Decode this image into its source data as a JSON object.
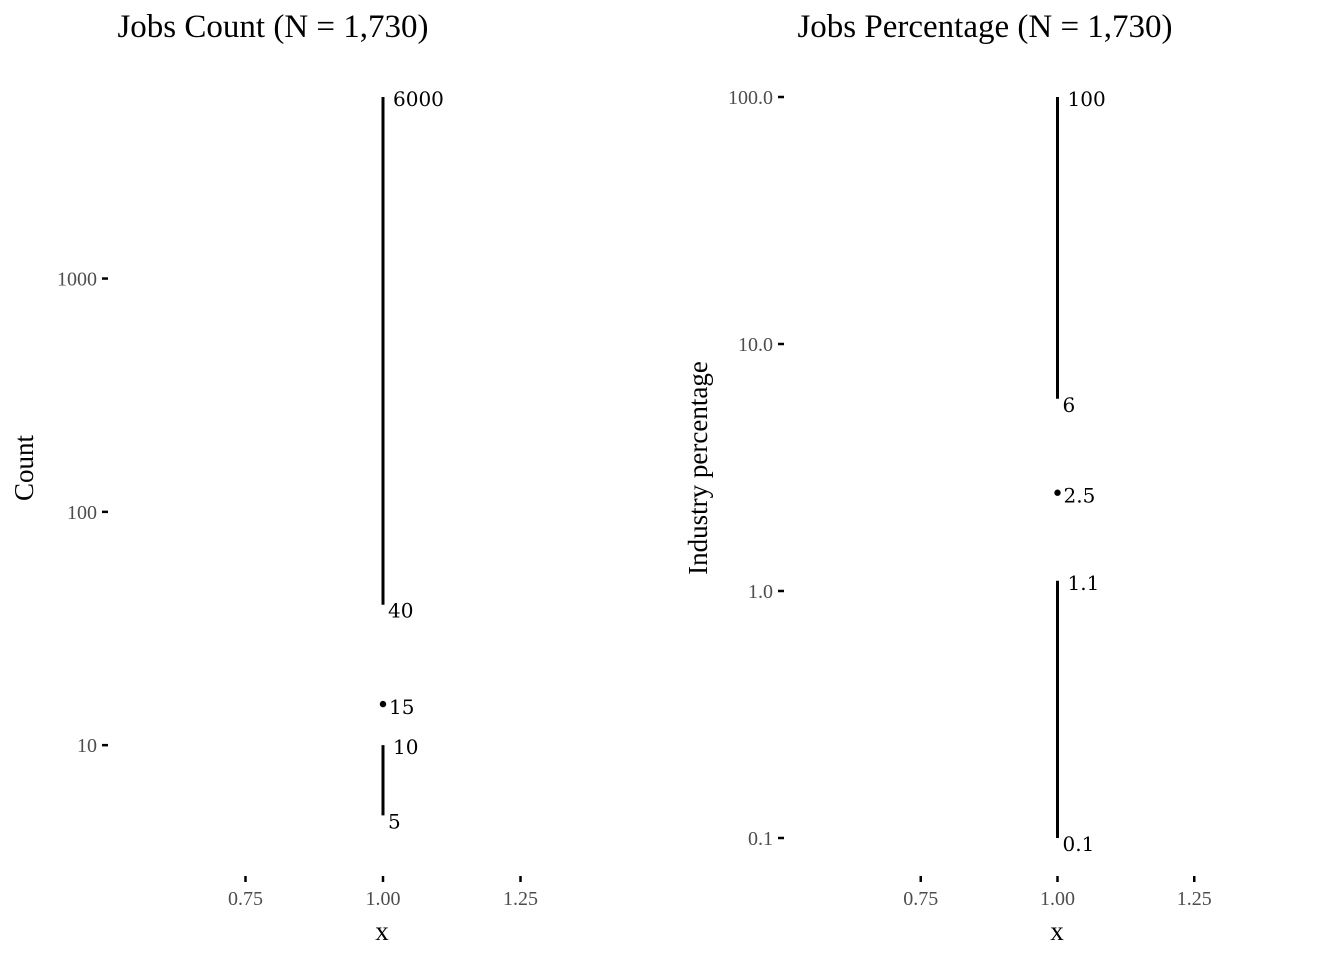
{
  "chart_data": [
    {
      "type": "range",
      "title": "Jobs Count (N = 1,730)",
      "xlabel": "x",
      "ylabel": "Count",
      "y_scale": "log10",
      "ylim": [
        4,
        6000
      ],
      "xlim": [
        0.5,
        1.5
      ],
      "x_ticks": [
        "0.75",
        "1.00",
        "1.25"
      ],
      "y_ticks": [
        {
          "value": 10,
          "label": "10"
        },
        {
          "value": 100,
          "label": "100"
        },
        {
          "value": 1000,
          "label": "1000"
        }
      ],
      "segments": [
        {
          "x": 1,
          "low": 40,
          "high": 6000,
          "low_label": "40",
          "high_label": "6000"
        },
        {
          "x": 1,
          "low": 5,
          "high": 10,
          "low_label": "5",
          "high_label": "10"
        }
      ],
      "points": [
        {
          "x": 1,
          "y": 15,
          "label": "15"
        }
      ]
    },
    {
      "type": "range",
      "title": "Jobs Percentage (N = 1,730)",
      "xlabel": "x",
      "ylabel": "Industry percentage",
      "y_scale": "log10",
      "ylim": [
        0.1,
        100
      ],
      "xlim": [
        0.5,
        1.5
      ],
      "x_ticks": [
        "0.75",
        "1.00",
        "1.25"
      ],
      "y_ticks": [
        {
          "value": 0.1,
          "label": "0.1"
        },
        {
          "value": 1,
          "label": "1.0"
        },
        {
          "value": 10,
          "label": "10.0"
        },
        {
          "value": 100,
          "label": "100.0"
        }
      ],
      "segments": [
        {
          "x": 1,
          "low": 6,
          "high": 100,
          "low_label": "6",
          "high_label": "100"
        },
        {
          "x": 1,
          "low": 0.1,
          "high": 1.1,
          "low_label": "0.1",
          "high_label": "1.1"
        }
      ],
      "points": [
        {
          "x": 1,
          "y": 2.5,
          "label": "2.5"
        }
      ]
    }
  ]
}
